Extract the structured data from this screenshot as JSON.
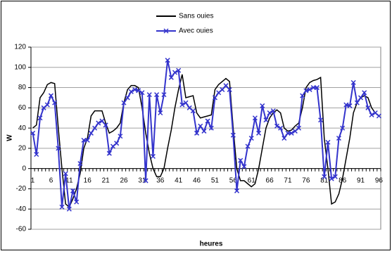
{
  "chart_data": {
    "type": "line",
    "xlabel": "heures",
    "ylabel": "W",
    "categories": [
      1,
      null,
      null,
      null,
      null,
      6,
      null,
      null,
      null,
      null,
      11,
      null,
      null,
      null,
      null,
      16,
      null,
      null,
      null,
      null,
      21,
      null,
      null,
      null,
      null,
      26,
      null,
      null,
      null,
      null,
      31,
      null,
      null,
      null,
      null,
      36,
      null,
      null,
      null,
      null,
      41,
      null,
      null,
      null,
      null,
      46,
      null,
      null,
      null,
      null,
      51,
      null,
      null,
      null,
      null,
      56,
      null,
      null,
      null,
      null,
      61,
      null,
      null,
      null,
      null,
      66,
      null,
      null,
      null,
      null,
      71,
      null,
      null,
      null,
      null,
      76,
      null,
      null,
      null,
      null,
      81,
      null,
      null,
      null,
      null,
      86,
      null,
      null,
      null,
      null,
      91,
      null,
      null,
      null,
      null,
      96
    ],
    "series": [
      {
        "name": "Sans ouies",
        "color": "#000000",
        "marker": "none",
        "values": [
          40,
          43,
          70,
          75,
          83,
          85,
          84,
          40,
          0,
          -35,
          -38,
          -30,
          -20,
          -5,
          20,
          30,
          52,
          57,
          57,
          57,
          45,
          35,
          37,
          40,
          45,
          65,
          78,
          82,
          82,
          80,
          60,
          35,
          15,
          0,
          -8,
          -8,
          0,
          20,
          38,
          60,
          78,
          93,
          70,
          71,
          72,
          55,
          50,
          51,
          52,
          53,
          78,
          83,
          86,
          89,
          86,
          40,
          0,
          -12,
          -12,
          -15,
          -18,
          -15,
          0,
          20,
          40,
          50,
          55,
          58,
          55,
          40,
          37,
          38,
          42,
          45,
          60,
          80,
          85,
          87,
          88,
          90,
          30,
          0,
          -35,
          -33,
          -25,
          -10,
          10,
          30,
          55,
          65,
          70,
          72,
          70,
          60,
          55,
          52
        ]
      },
      {
        "name": "Avec ouies",
        "color": "#3333cc",
        "marker": "x",
        "values": [
          35,
          14,
          50,
          60,
          63,
          72,
          65,
          20,
          -38,
          -5,
          -40,
          -22,
          -33,
          5,
          28,
          28,
          35,
          40,
          45,
          47,
          43,
          15,
          22,
          25,
          32,
          65,
          70,
          76,
          78,
          77,
          75,
          -12,
          73,
          12,
          73,
          55,
          73,
          107,
          90,
          95,
          97,
          63,
          65,
          60,
          57,
          35,
          42,
          37,
          47,
          40,
          70,
          75,
          78,
          82,
          78,
          33,
          -22,
          8,
          2,
          22,
          30,
          50,
          35,
          62,
          48,
          55,
          57,
          42,
          40,
          30,
          35,
          35,
          37,
          40,
          72,
          77,
          78,
          80,
          80,
          48,
          -8,
          26,
          -10,
          -8,
          30,
          40,
          63,
          62,
          85,
          65,
          70,
          75,
          60,
          53,
          55,
          52
        ]
      }
    ],
    "ylim": [
      -60,
      120
    ],
    "yticks": [
      -60,
      -40,
      -20,
      0,
      20,
      40,
      60,
      80,
      100,
      120
    ],
    "grid": true,
    "legend": "top"
  }
}
